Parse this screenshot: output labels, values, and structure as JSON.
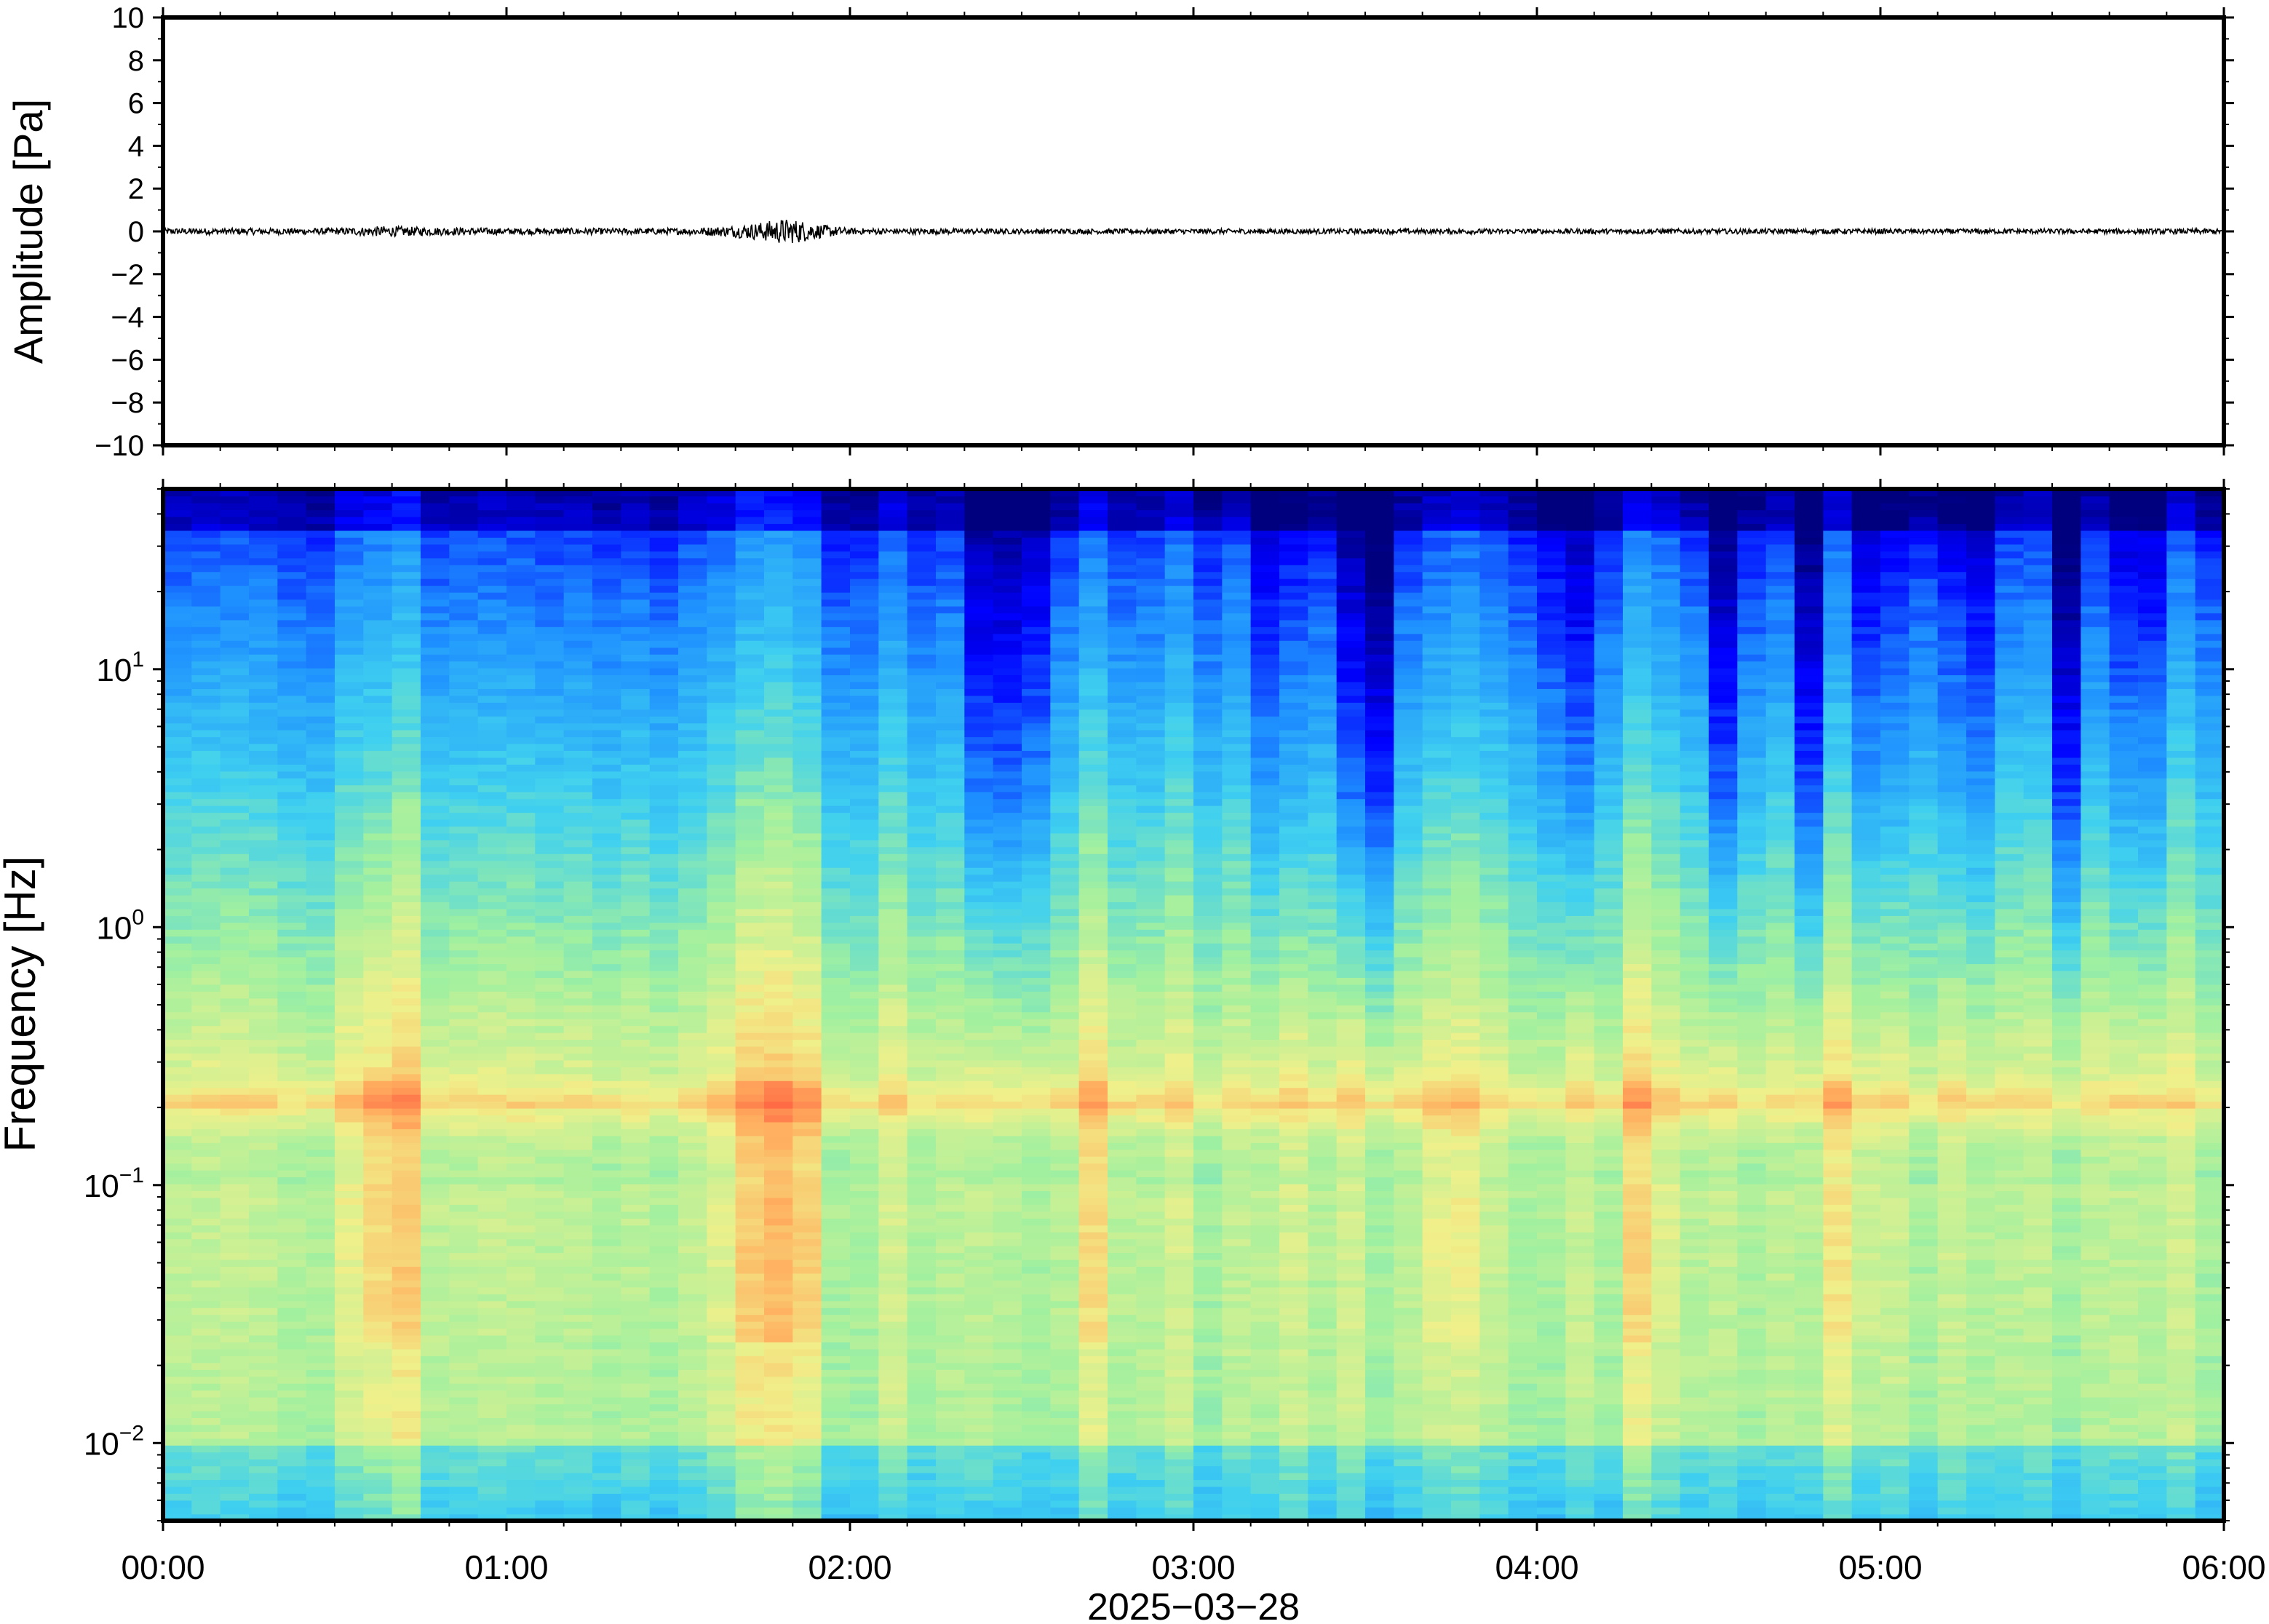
{
  "figure": {
    "date_label": "2025−03−28"
  },
  "chart_data": [
    {
      "type": "line",
      "ylabel": "Amplitude [Pa]",
      "ylim": [
        -10,
        10
      ],
      "yticks": [
        10,
        8,
        6,
        4,
        2,
        0,
        -2,
        -4,
        -6,
        -8,
        -10
      ],
      "ytick_labels": [
        "10",
        "8",
        "6",
        "4",
        "2",
        "0",
        "−2",
        "−4",
        "−6",
        "−8",
        "−10"
      ],
      "x_range_hours": [
        0,
        6
      ],
      "series": [
        {
          "color": "#000000",
          "x_hours": [
            0,
            0.25,
            0.5,
            0.65,
            0.75,
            1.0,
            1.25,
            1.5,
            1.65,
            1.75,
            1.8,
            1.85,
            1.9,
            2.0,
            2.5,
            3.0,
            3.5,
            4.0,
            4.5,
            5.0,
            5.5,
            6.0
          ],
          "amplitude_envelope": [
            0.15,
            0.15,
            0.15,
            0.25,
            0.2,
            0.15,
            0.15,
            0.15,
            0.25,
            0.45,
            0.6,
            0.55,
            0.35,
            0.15,
            0.12,
            0.12,
            0.12,
            0.12,
            0.12,
            0.12,
            0.12,
            0.12
          ]
        }
      ]
    },
    {
      "type": "heatmap",
      "ylabel": "Frequency [Hz]",
      "yscale": "log",
      "ylim": [
        0.005,
        50
      ],
      "yticks": [
        {
          "base": "10",
          "exp": "1",
          "value": 10
        },
        {
          "base": "10",
          "exp": "0",
          "value": 1
        },
        {
          "base": "10",
          "exp": "−1",
          "value": 0.1
        },
        {
          "base": "10",
          "exp": "−2",
          "value": 0.01
        }
      ],
      "xticks": [
        "00:00",
        "01:00",
        "02:00",
        "03:00",
        "04:00",
        "05:00",
        "06:00"
      ],
      "x_range_hours": [
        0,
        6
      ],
      "colormap": [
        "#00007f",
        "#0000ff",
        "#1e90ff",
        "#3fd0f0",
        "#a0f0a0",
        "#f0f08a",
        "#ffb060",
        "#ff6040"
      ],
      "dark_columns_hours": [
        2.4,
        2.5,
        3.25,
        3.45,
        3.55,
        4.1,
        4.55,
        4.8,
        5.0,
        5.25,
        5.55,
        5.75
      ],
      "bright_columns_hours": [
        0.6,
        0.7,
        1.7,
        1.8,
        1.85,
        2.7,
        3.75,
        4.3,
        4.9
      ],
      "energy_band_hz": 0.2
    }
  ]
}
